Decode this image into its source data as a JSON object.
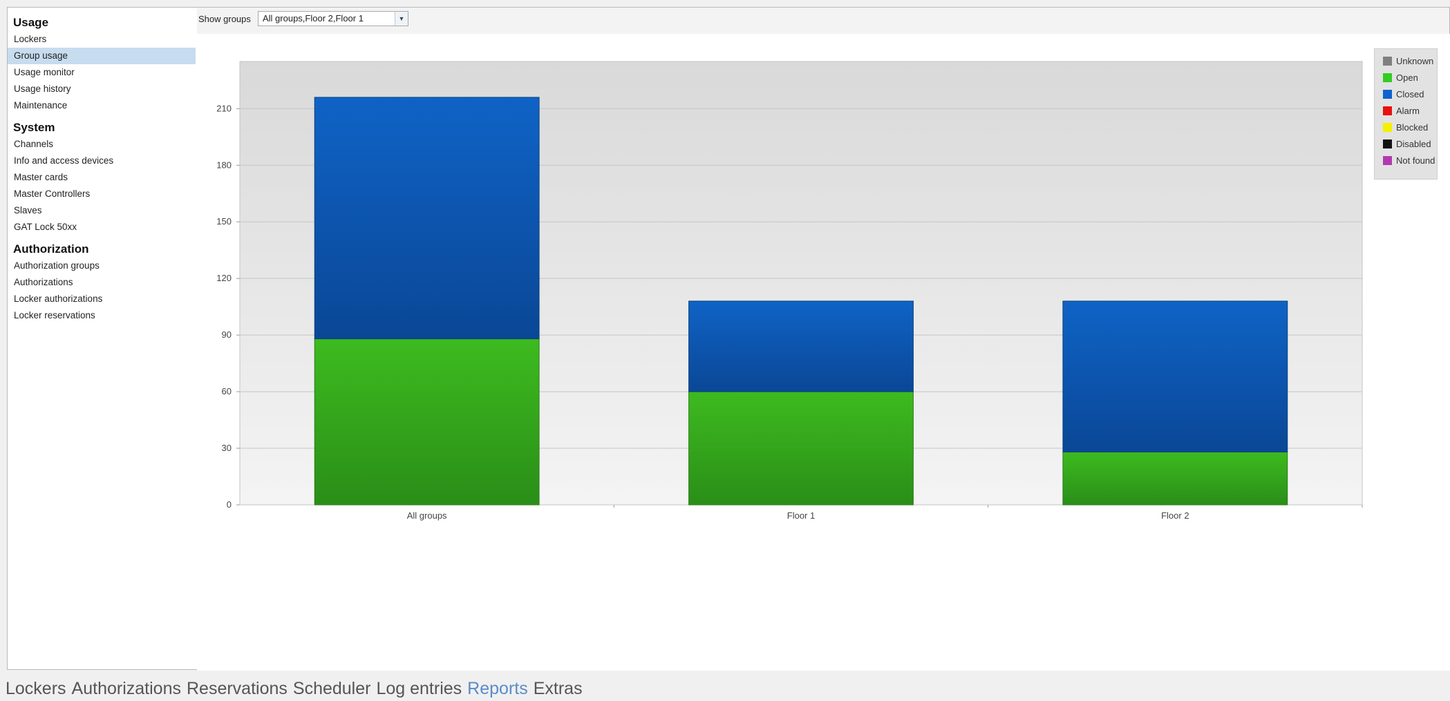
{
  "sidebar": {
    "sections": [
      {
        "title": "Usage",
        "items": [
          "Lockers",
          "Group usage",
          "Usage monitor",
          "Usage history",
          "Maintenance"
        ]
      },
      {
        "title": "System",
        "items": [
          "Channels",
          "Info and access devices",
          "Master cards",
          "Master Controllers",
          "Slaves",
          "GAT Lock 50xx"
        ]
      },
      {
        "title": "Authorization",
        "items": [
          "Authorization groups",
          "Authorizations",
          "Locker authorizations",
          "Locker reservations"
        ]
      }
    ],
    "active_item": "Group usage"
  },
  "toolbar": {
    "show_groups_label": "Show groups",
    "groups_value": "All groups,Floor 2,Floor 1"
  },
  "legend": [
    {
      "label": "Unknown",
      "color": "#808080"
    },
    {
      "label": "Open",
      "color": "#33cc22"
    },
    {
      "label": "Closed",
      "color": "#1060d0"
    },
    {
      "label": "Alarm",
      "color": "#e81010"
    },
    {
      "label": "Blocked",
      "color": "#f4f000"
    },
    {
      "label": "Disabled",
      "color": "#111111"
    },
    {
      "label": "Not found",
      "color": "#b03ab0"
    }
  ],
  "chart_data": {
    "type": "bar",
    "stacked": true,
    "categories": [
      "All groups",
      "Floor 1",
      "Floor 2"
    ],
    "series": [
      {
        "name": "Open",
        "color": "#33aa1a",
        "values": [
          88,
          60,
          28
        ]
      },
      {
        "name": "Closed",
        "color": "#0a55b8",
        "values": [
          128,
          48,
          80
        ]
      }
    ],
    "y_ticks": [
      "0",
      "30",
      "60",
      "90",
      "120",
      "150",
      "180",
      "210"
    ],
    "ylim": [
      0,
      235
    ],
    "grid": true
  },
  "bottom_tabs": {
    "items": [
      "Lockers",
      "Authorizations",
      "Reservations",
      "Scheduler",
      "Log entries",
      "Reports",
      "Extras"
    ],
    "active": "Reports"
  }
}
